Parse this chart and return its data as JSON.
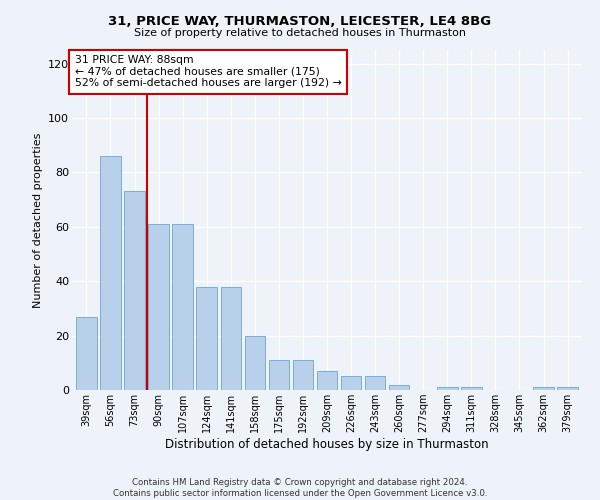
{
  "title1": "31, PRICE WAY, THURMASTON, LEICESTER, LE4 8BG",
  "title2": "Size of property relative to detached houses in Thurmaston",
  "xlabel": "Distribution of detached houses by size in Thurmaston",
  "ylabel": "Number of detached properties",
  "categories": [
    "39sqm",
    "56sqm",
    "73sqm",
    "90sqm",
    "107sqm",
    "124sqm",
    "141sqm",
    "158sqm",
    "175sqm",
    "192sqm",
    "209sqm",
    "226sqm",
    "243sqm",
    "260sqm",
    "277sqm",
    "294sqm",
    "311sqm",
    "328sqm",
    "345sqm",
    "362sqm",
    "379sqm"
  ],
  "values": [
    27,
    86,
    73,
    61,
    61,
    38,
    38,
    20,
    11,
    11,
    7,
    5,
    5,
    2,
    0,
    1,
    1,
    0,
    0,
    1,
    1
  ],
  "bar_color": "#b8d0ea",
  "bar_edge_color": "#7badd4",
  "vline_color": "#cc0000",
  "annotation_text": "31 PRICE WAY: 88sqm\n← 47% of detached houses are smaller (175)\n52% of semi-detached houses are larger (192) →",
  "annotation_box_color": "white",
  "annotation_box_edge": "#cc0000",
  "ylim": [
    0,
    125
  ],
  "yticks": [
    0,
    20,
    40,
    60,
    80,
    100,
    120
  ],
  "background_color": "#eef2f9",
  "grid_color": "white",
  "footer": "Contains HM Land Registry data © Crown copyright and database right 2024.\nContains public sector information licensed under the Open Government Licence v3.0."
}
